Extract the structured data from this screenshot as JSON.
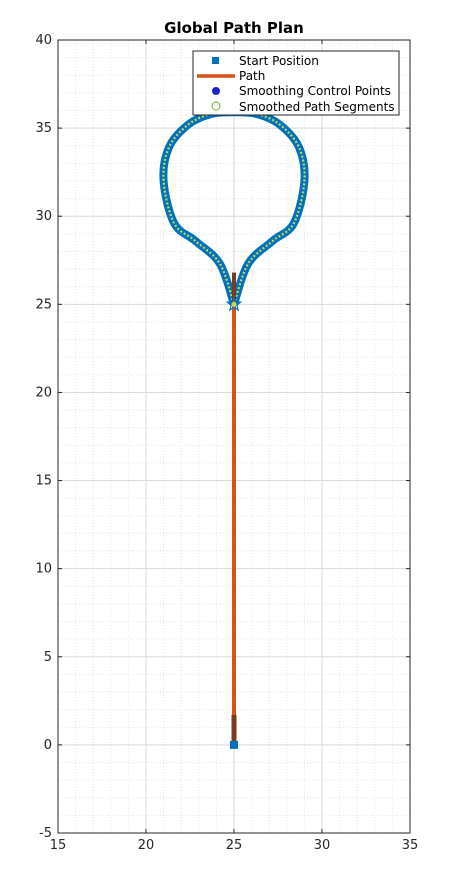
{
  "chart_data": {
    "type": "line",
    "title": "Global Path Plan",
    "xlabel": "",
    "ylabel": "",
    "xlim": [
      15,
      35
    ],
    "ylim": [
      -5,
      40
    ],
    "xticks": [
      15,
      20,
      25,
      30,
      35
    ],
    "yticks": [
      -5,
      0,
      5,
      10,
      15,
      20,
      25,
      30,
      35,
      40
    ],
    "grid": true,
    "minor_grid": true,
    "legend_position": "top-right",
    "series": [
      {
        "name": "Start Position",
        "marker": "square",
        "color": "#0072BD",
        "x": [
          25
        ],
        "y": [
          0
        ]
      },
      {
        "name": "Path",
        "marker": "line",
        "color": "#D95319",
        "x": [
          25,
          25
        ],
        "y": [
          0,
          26.8
        ]
      },
      {
        "name": "Smoothing Control Points",
        "marker": "dot",
        "color": "#1f1fd6",
        "x": [],
        "y": []
      },
      {
        "name": "Smoothed Path Segments",
        "marker": "circle",
        "color": "#77AC30",
        "x": [
          25,
          25.8,
          27.2,
          28.4,
          29.0,
          28.7,
          27.6,
          26.3,
          25.0,
          23.7,
          22.4,
          21.3,
          21.0,
          21.6,
          22.8,
          24.2,
          25
        ],
        "y": [
          25,
          27.3,
          28.6,
          29.6,
          32.0,
          33.9,
          35.2,
          35.8,
          35.9,
          35.8,
          35.2,
          33.9,
          32.0,
          29.6,
          28.6,
          27.3,
          25
        ]
      }
    ],
    "legend": [
      "Start Position",
      "Path",
      "Smoothing Control Points",
      "Smoothed Path Segments"
    ]
  }
}
